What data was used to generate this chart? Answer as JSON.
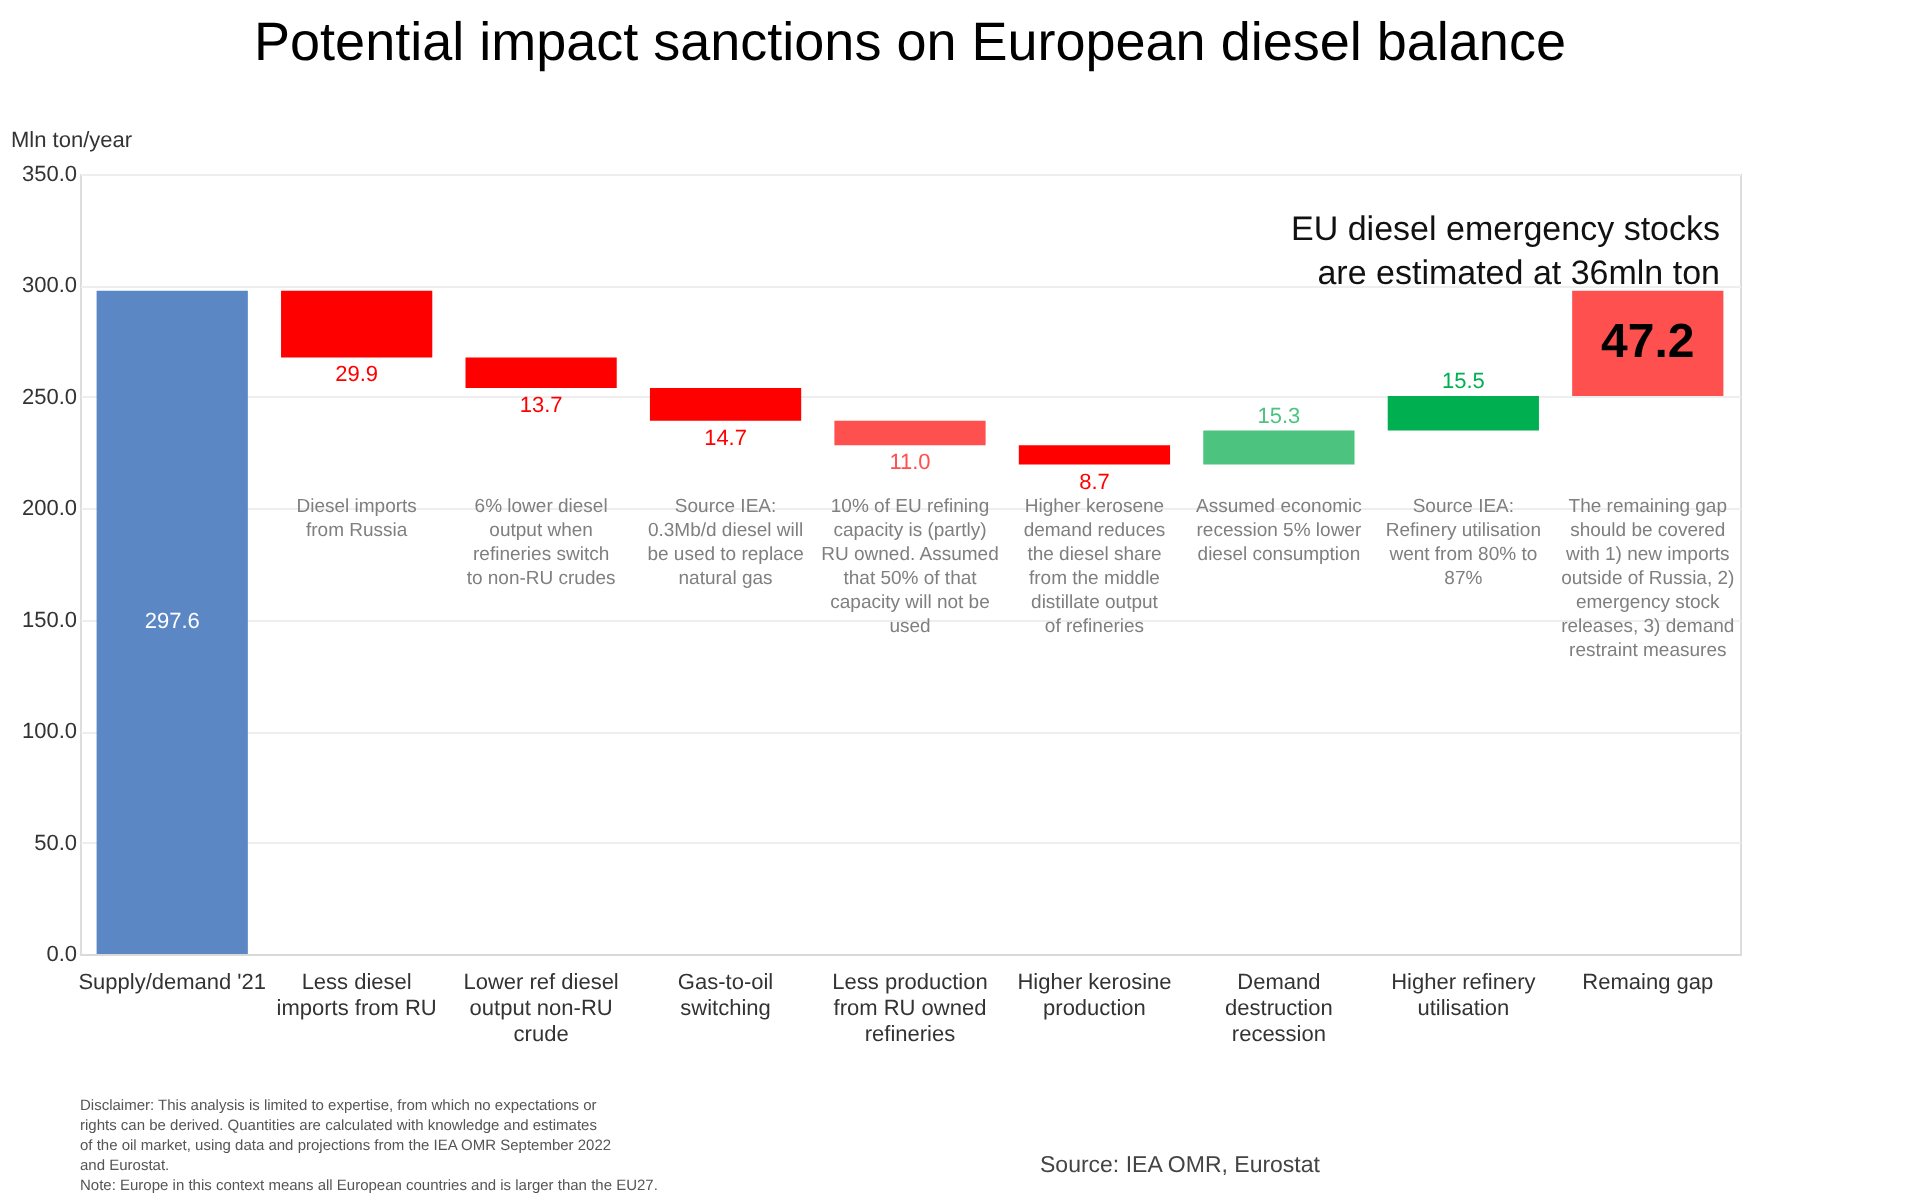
{
  "chart_data": {
    "type": "bar",
    "title": "Potential impact sanctions on European diesel balance",
    "ylabel": "Mln ton/year",
    "categories": [
      "Supply/demand '21",
      "Less diesel imports from RU",
      "Lower ref diesel output non-RU crude",
      "Gas-to-oil switching",
      "Less production from RU owned refineries",
      "Higher kerosine production",
      "Demand destruction recession",
      "Higher refinery utilisation",
      "Remaing gap"
    ],
    "values": [
      297.6,
      -29.9,
      -13.7,
      -14.7,
      -11.0,
      -8.7,
      15.3,
      15.5,
      47.2
    ],
    "base": [
      0,
      297.6,
      267.7,
      254.0,
      239.3,
      228.3,
      219.6,
      234.9,
      250.4
    ],
    "colors": [
      "#5b87c5",
      "#ff0000",
      "#ff0000",
      "#ff0000",
      "#ff5050",
      "#ff0000",
      "#4cc47f",
      "#00b050",
      "#ff5050"
    ],
    "value_labels": [
      "297.6",
      "29.9",
      "13.7",
      "14.7",
      "11.0",
      "8.7",
      "15.3",
      "15.5",
      "47.2"
    ],
    "ylim": [
      0,
      350
    ],
    "yticks": [
      {
        "value": 0,
        "label": "0.0"
      },
      {
        "value": 50,
        "label": "50.0"
      },
      {
        "value": 100,
        "label": "100.0"
      },
      {
        "value": 150,
        "label": "150.0"
      },
      {
        "value": 200,
        "label": "200.0"
      },
      {
        "value": 250,
        "label": "250.0"
      },
      {
        "value": 300,
        "label": "300.0"
      },
      {
        "value": 350,
        "label": "350.0"
      }
    ],
    "grid": "y",
    "annotations": [
      "EU diesel emergency stocks\nare estimated at 36mln ton",
      "Disclaimer: This analysis is limited to expertise, from which no expectations or\nrights can be derived. Quantities are calculated with knowledge and estimates\nof the oil market, using data and projections from the IEA OMR September 2022\nand Eurostat.",
      "Note: Europe in this context means all European countries and is larger than the EU27.",
      "Source: IEA OMR, Eurostat",
      "Diesel imports\nfrom Russia",
      "6% lower diesel\noutput when\nrefineries switch\nto non-RU crudes",
      "Source IEA:\n0.3Mb/d diesel will\nbe used to replace\nnatural gas",
      "10% of EU refining\ncapacity is (partly)\nRU owned. Assumed\nthat 50% of that\ncapacity will not be\nused",
      "Higher kerosene\ndemand reduces\nthe diesel share\nfrom the middle\ndistillate output\nof refineries",
      "Assumed economic\nrecession 5% lower\ndiesel consumption",
      "Source IEA:\nRefinery utilisation\nwent from 80% to\n87%",
      "The remaining gap\nshould be covered\nwith 1) new imports\noutside of Russia, 2)\nemergency stock\nreleases, 3) demand\nrestraint measures"
    ]
  }
}
